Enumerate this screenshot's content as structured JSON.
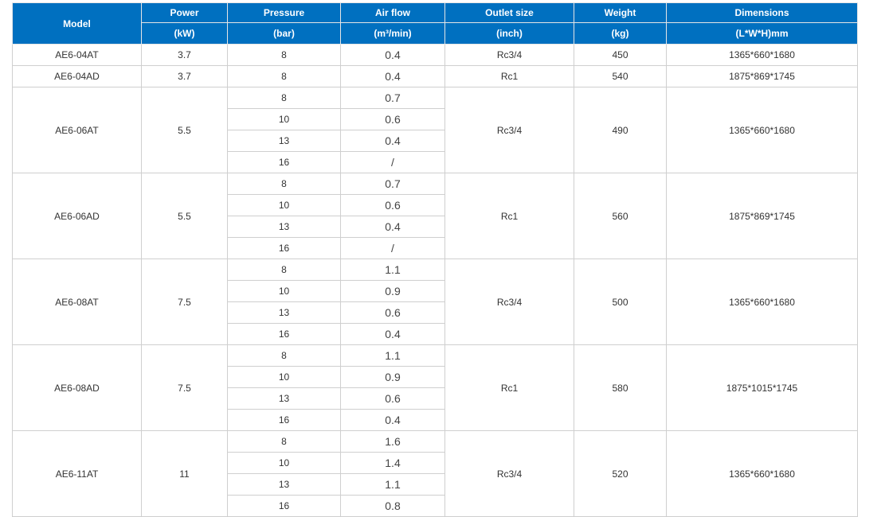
{
  "header": {
    "columns": [
      {
        "label": "Model",
        "unit": ""
      },
      {
        "label": "Power",
        "unit": "(kW)"
      },
      {
        "label": "Pressure",
        "unit": "(bar)"
      },
      {
        "label": "Air flow",
        "unit": "(m³/min)"
      },
      {
        "label": "Outlet size",
        "unit": "(inch)"
      },
      {
        "label": "Weight",
        "unit": "(kg)"
      },
      {
        "label": "Dimensions",
        "unit": "(L*W*H)mm"
      }
    ],
    "color": "#0070c0"
  },
  "models": [
    {
      "model": "AE6-04AT",
      "power": "3.7",
      "rows": [
        {
          "pressure": "8",
          "flow": "0.4"
        }
      ],
      "outlet": "Rc3/4",
      "weight": "450",
      "dimensions": "1365*660*1680"
    },
    {
      "model": "AE6-04AD",
      "power": "3.7",
      "rows": [
        {
          "pressure": "8",
          "flow": "0.4"
        }
      ],
      "outlet": "Rc1",
      "weight": "540",
      "dimensions": "1875*869*1745"
    },
    {
      "model": "AE6-06AT",
      "power": "5.5",
      "rows": [
        {
          "pressure": "8",
          "flow": "0.7"
        },
        {
          "pressure": "10",
          "flow": "0.6"
        },
        {
          "pressure": "13",
          "flow": "0.4"
        },
        {
          "pressure": "16",
          "flow": "/"
        }
      ],
      "outlet": "Rc3/4",
      "weight": "490",
      "dimensions": "1365*660*1680"
    },
    {
      "model": "AE6-06AD",
      "power": "5.5",
      "rows": [
        {
          "pressure": "8",
          "flow": "0.7"
        },
        {
          "pressure": "10",
          "flow": "0.6"
        },
        {
          "pressure": "13",
          "flow": "0.4"
        },
        {
          "pressure": "16",
          "flow": "/"
        }
      ],
      "outlet": "Rc1",
      "weight": "560",
      "dimensions": "1875*869*1745"
    },
    {
      "model": "AE6-08AT",
      "power": "7.5",
      "rows": [
        {
          "pressure": "8",
          "flow": "1.1"
        },
        {
          "pressure": "10",
          "flow": "0.9"
        },
        {
          "pressure": "13",
          "flow": "0.6"
        },
        {
          "pressure": "16",
          "flow": "0.4"
        }
      ],
      "outlet": "Rc3/4",
      "weight": "500",
      "dimensions": "1365*660*1680"
    },
    {
      "model": "AE6-08AD",
      "power": "7.5",
      "rows": [
        {
          "pressure": "8",
          "flow": "1.1"
        },
        {
          "pressure": "10",
          "flow": "0.9"
        },
        {
          "pressure": "13",
          "flow": "0.6"
        },
        {
          "pressure": "16",
          "flow": "0.4"
        }
      ],
      "outlet": "Rc1",
      "weight": "580",
      "dimensions": "1875*1015*1745"
    },
    {
      "model": "AE6-11AT",
      "power": "11",
      "rows": [
        {
          "pressure": "8",
          "flow": "1.6"
        },
        {
          "pressure": "10",
          "flow": "1.4"
        },
        {
          "pressure": "13",
          "flow": "1.1"
        },
        {
          "pressure": "16",
          "flow": "0.8"
        }
      ],
      "outlet": "Rc3/4",
      "weight": "520",
      "dimensions": "1365*660*1680"
    }
  ]
}
